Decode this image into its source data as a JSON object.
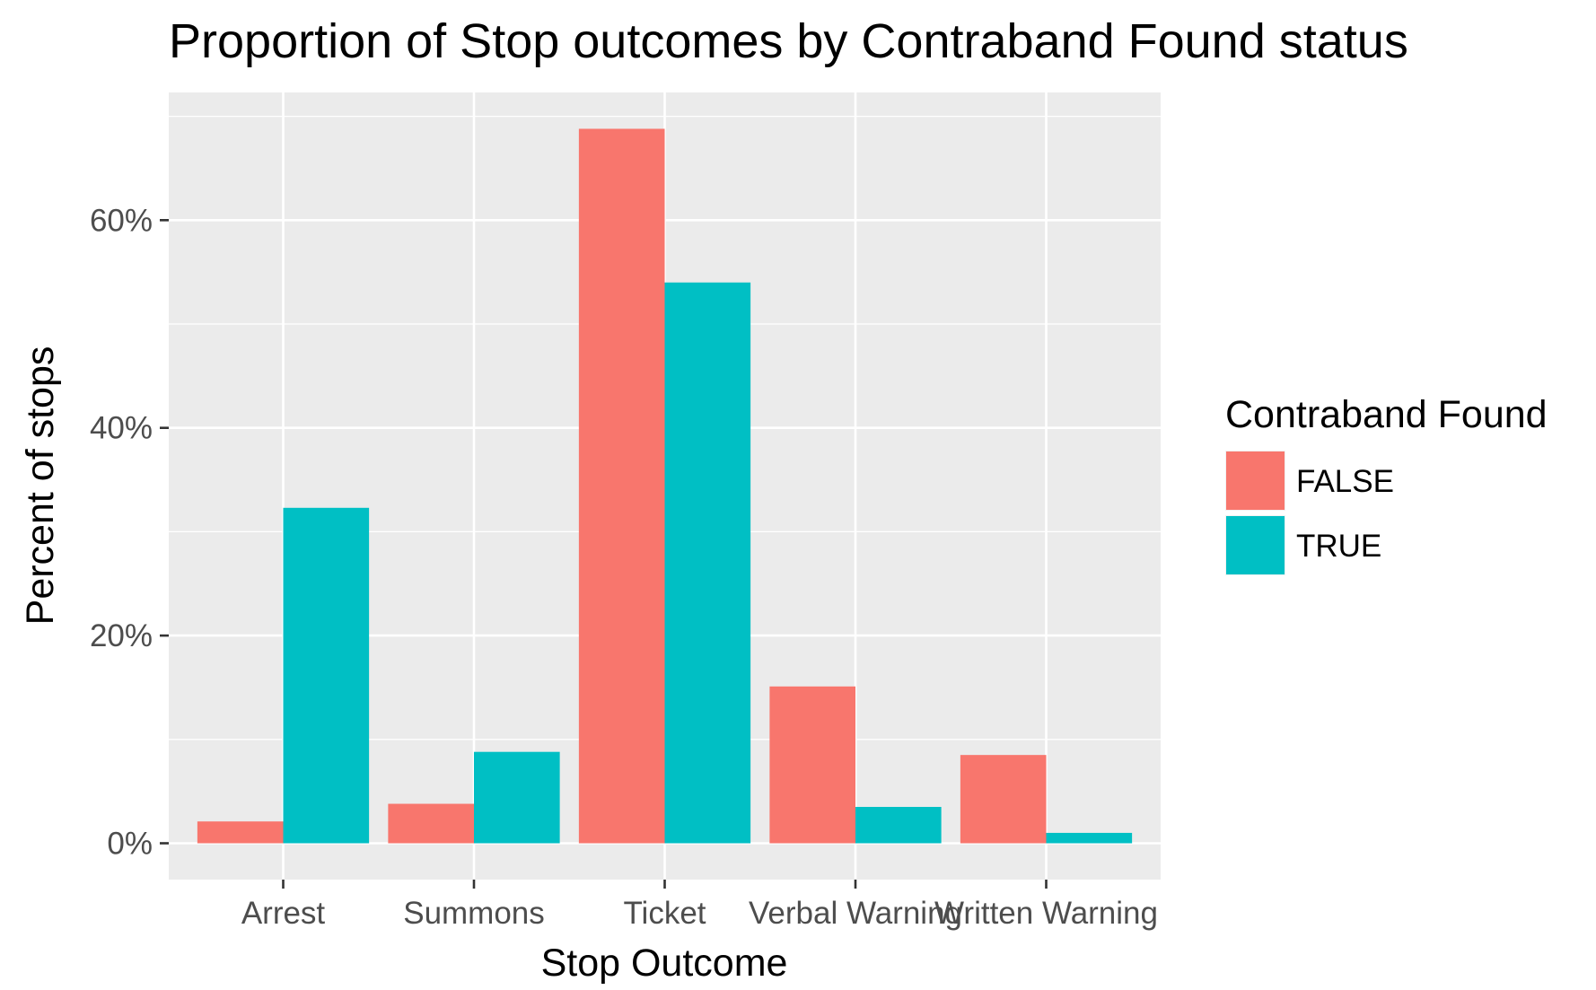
{
  "chart_data": {
    "type": "bar",
    "title": "Proportion of Stop outcomes by Contraband Found status",
    "xlabel": "Stop Outcome",
    "ylabel": "Percent of stops",
    "categories": [
      "Arrest",
      "Summons",
      "Ticket",
      "Verbal Warning",
      "Written Warning"
    ],
    "series": [
      {
        "name": "FALSE",
        "color": "#F8766D",
        "values": [
          2.1,
          3.8,
          68.8,
          15.1,
          8.5
        ]
      },
      {
        "name": "TRUE",
        "color": "#00BFC4",
        "values": [
          32.3,
          8.8,
          54.0,
          3.5,
          1.0
        ]
      }
    ],
    "y_ticks": [
      "0%",
      "20%",
      "40%",
      "60%"
    ],
    "y_tick_values": [
      0,
      20,
      40,
      60
    ],
    "ylim": [
      -3.5,
      72.3
    ],
    "grid": true,
    "legend": {
      "title": "Contraband Found",
      "position": "right"
    },
    "panel_background": "#EBEBEB"
  }
}
